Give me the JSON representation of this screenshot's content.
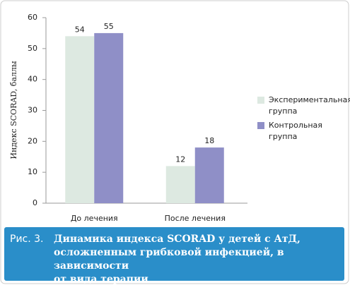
{
  "chart_data": {
    "type": "bar",
    "y_label": "Индекс SCORAD, баллы",
    "categories": [
      "До лечения",
      "После лечения"
    ],
    "series": [
      {
        "name": "Экспериментальная группа",
        "color": "#dde9e1",
        "values": [
          54,
          12
        ]
      },
      {
        "name": "Контрольная группа",
        "color": "#8f8fc7",
        "values": [
          55,
          18
        ]
      }
    ],
    "ylim": [
      0,
      60
    ],
    "yticks": [
      0,
      10,
      20,
      30,
      40,
      50,
      60
    ],
    "grid": false,
    "legend": "right"
  },
  "caption": {
    "label": "Рис. 3.",
    "lines": [
      "Динамика индекса SCORAD у детей с АтД,",
      "осложненным грибковой инфекцией, в зависимости",
      "от вида терапии"
    ]
  }
}
